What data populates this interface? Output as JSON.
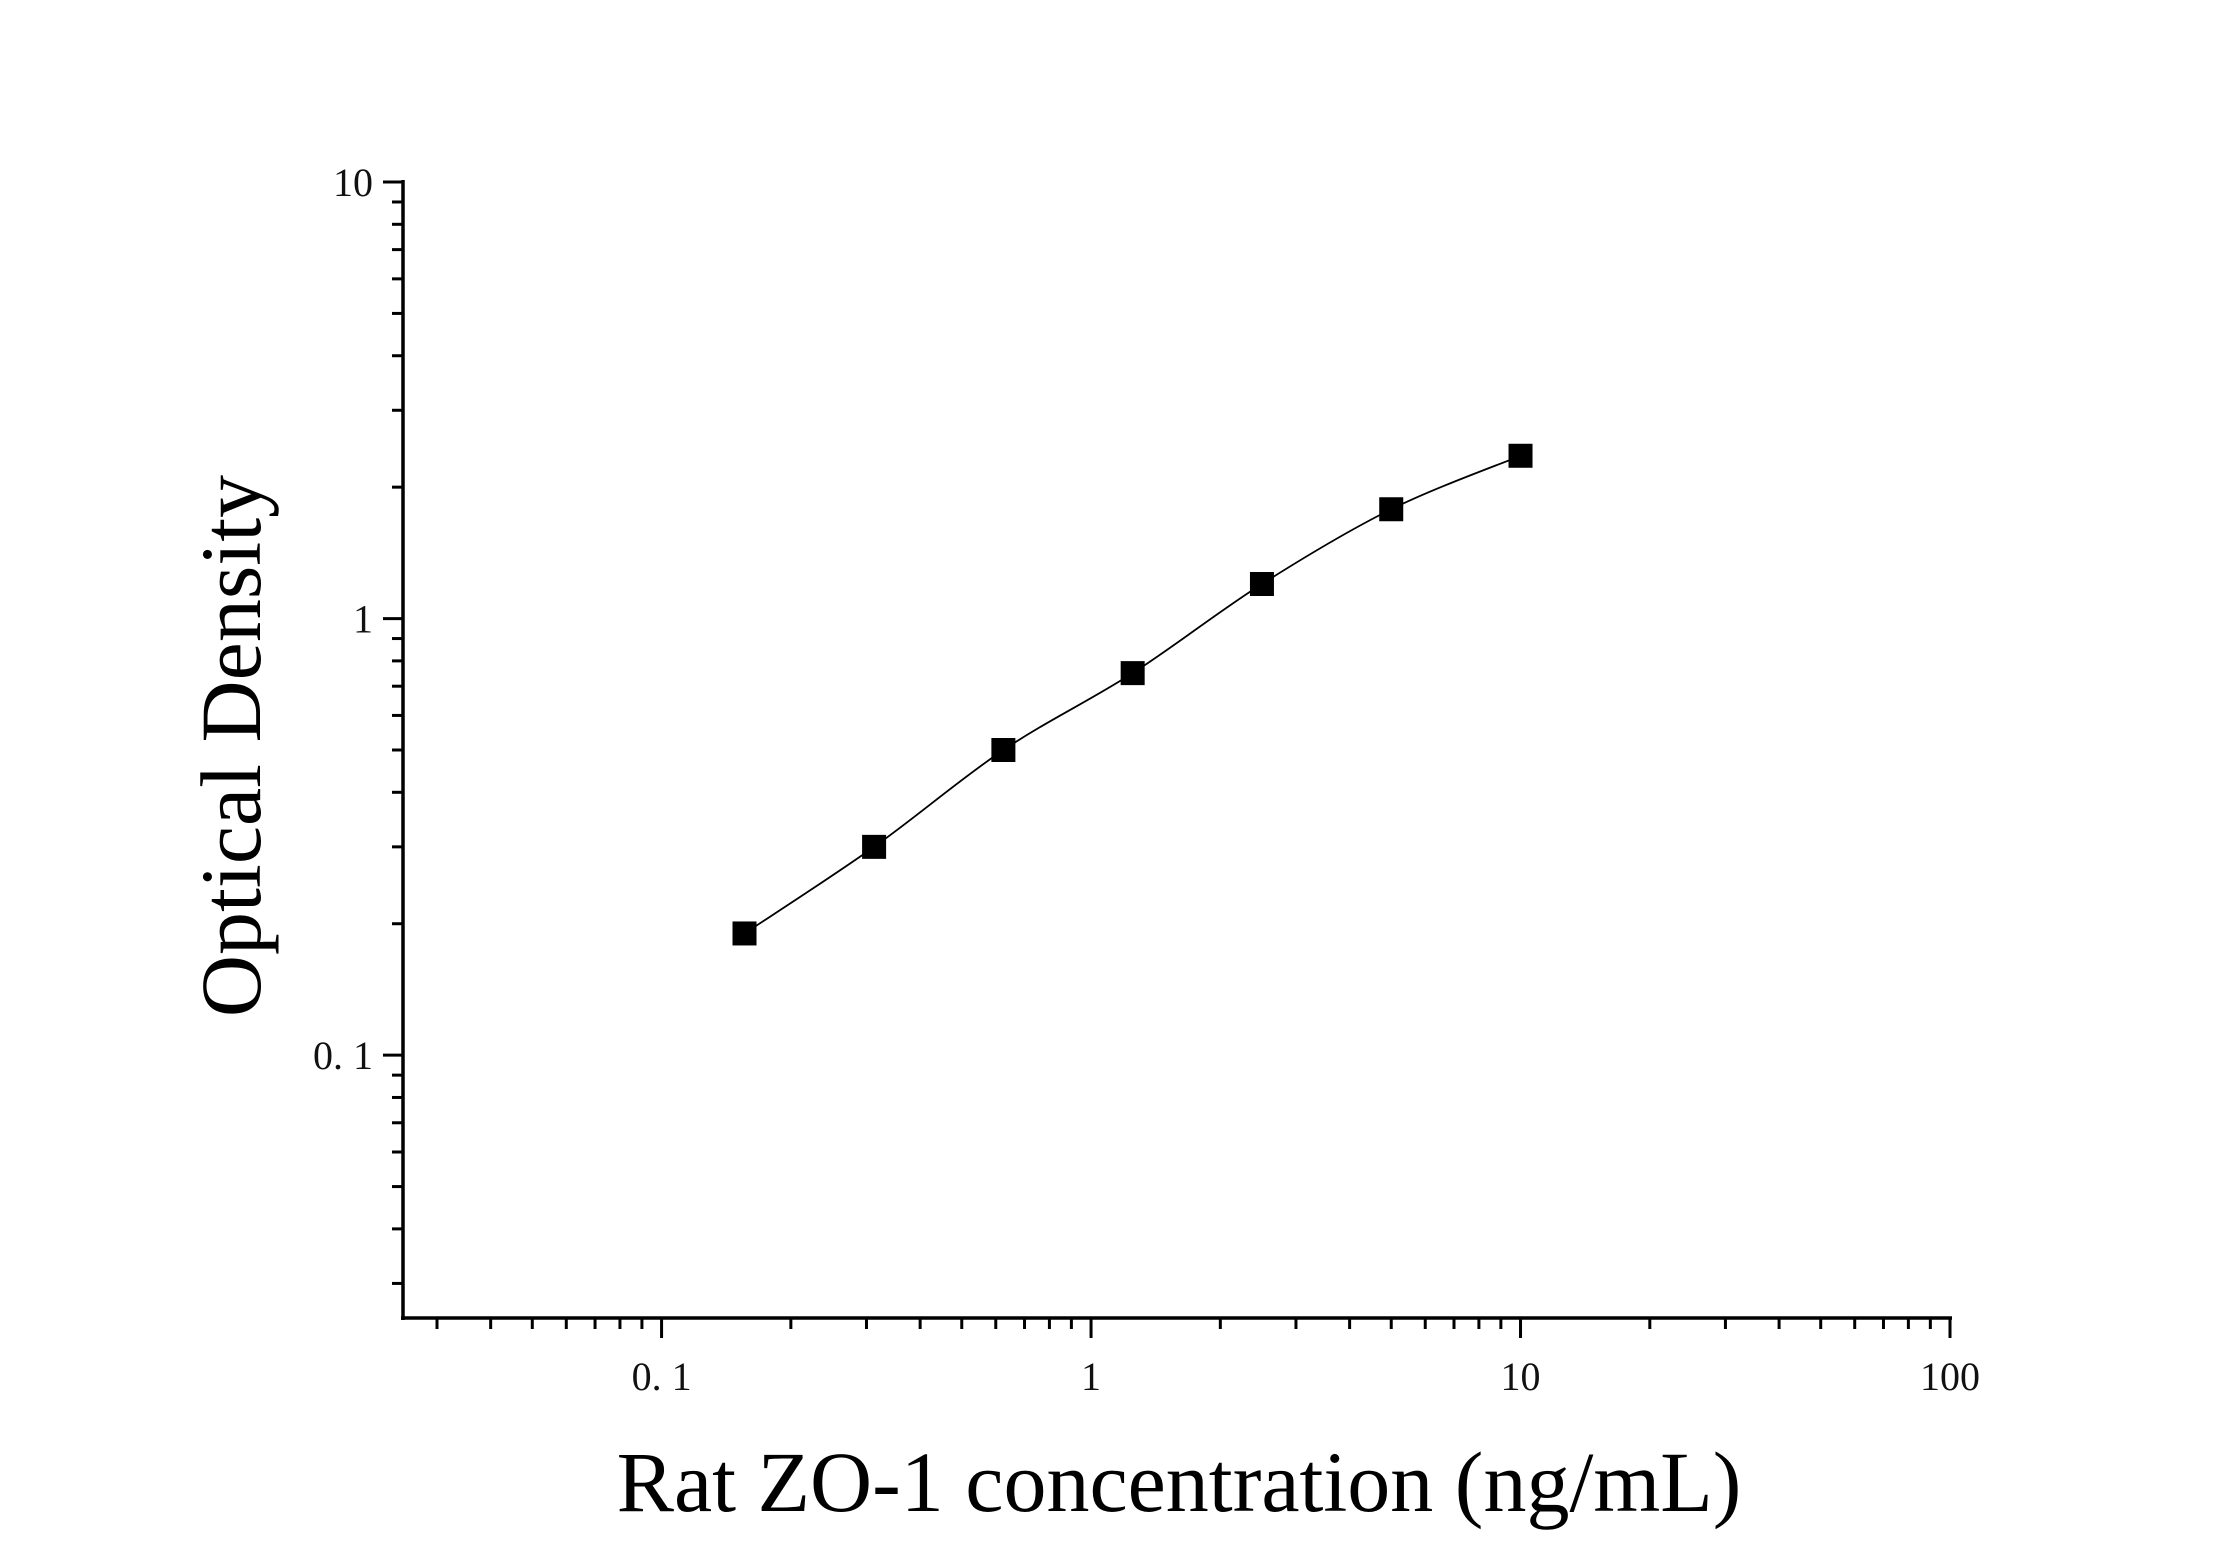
{
  "chart_data": {
    "type": "scatter",
    "title": "",
    "xlabel": "Rat ZO-1 concentration (ng/mL)",
    "ylabel": "Optical Density",
    "x_scale": "log",
    "y_scale": "log",
    "xlim": [
      0.025,
      100
    ],
    "ylim": [
      0.025,
      10
    ],
    "x_ticks": [
      {
        "value": 0.1,
        "label": "0. 1"
      },
      {
        "value": 1,
        "label": "1"
      },
      {
        "value": 10,
        "label": "10"
      },
      {
        "value": 100,
        "label": "100"
      }
    ],
    "y_ticks": [
      {
        "value": 0.1,
        "label": "0. 1"
      },
      {
        "value": 1,
        "label": "1"
      },
      {
        "value": 10,
        "label": "10"
      }
    ],
    "grid": false,
    "legend": "none",
    "marker": "square",
    "colors": {
      "marker": "#000000",
      "curve": "#000000",
      "axis": "#000000"
    },
    "series": [
      {
        "x": [
          0.156,
          0.3125,
          0.625,
          1.25,
          2.5,
          5,
          10
        ],
        "y": [
          0.19,
          0.3,
          0.5,
          0.75,
          1.2,
          1.78,
          2.36
        ],
        "fit": "smooth curve"
      }
    ]
  }
}
